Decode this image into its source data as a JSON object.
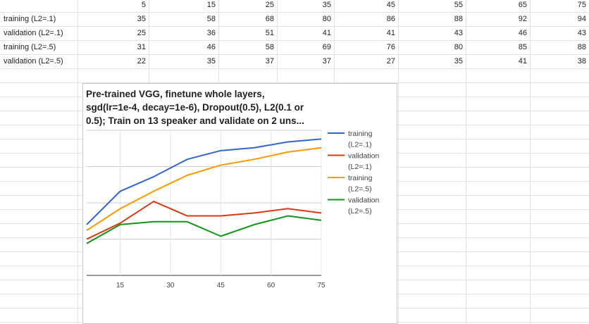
{
  "sheet": {
    "rows": [
      {
        "label": "",
        "values": [
          "5",
          "15",
          "25",
          "35",
          "45",
          "55",
          "65",
          "75"
        ]
      },
      {
        "label": "training (L2=.1)",
        "values": [
          "35",
          "58",
          "68",
          "80",
          "86",
          "88",
          "92",
          "94"
        ]
      },
      {
        "label": "validation (L2=.1)",
        "values": [
          "25",
          "36",
          "51",
          "41",
          "41",
          "43",
          "46",
          "43"
        ]
      },
      {
        "label": "training (L2=.5)",
        "values": [
          "31",
          "46",
          "58",
          "69",
          "76",
          "80",
          "85",
          "88"
        ]
      },
      {
        "label": "validation (L2=.5)",
        "values": [
          "22",
          "35",
          "37",
          "37",
          "27",
          "35",
          "41",
          "38"
        ]
      }
    ]
  },
  "chart": {
    "title_lines": [
      "Pre-trained VGG, finetune whole layers,",
      "sgd(lr=1e-4, decay=1e-6), Dropout(0.5), L2(0.1 or",
      "0.5); Train on 13 speaker and validate on 2 uns..."
    ]
  },
  "chart_data": {
    "type": "line",
    "title": "Pre-trained VGG, finetune whole layers, sgd(lr=1e-4, decay=1e-6), Dropout(0.5), L2(0.1 or 0.5); Train on 13 speaker and validate on 2 uns...",
    "x": [
      5,
      15,
      25,
      35,
      45,
      55,
      65,
      75
    ],
    "xticks": [
      15,
      30,
      45,
      60,
      75
    ],
    "yticks": [
      0,
      25,
      50,
      75,
      100
    ],
    "xlim": [
      5,
      75
    ],
    "ylim": [
      0,
      100
    ],
    "grid": true,
    "legend_position": "right",
    "series": [
      {
        "name": "training (L2=.1)",
        "label_lines": [
          "training",
          "(L2=.1)"
        ],
        "color": "#3366cc",
        "values": [
          35,
          58,
          68,
          80,
          86,
          88,
          92,
          94
        ]
      },
      {
        "name": "validation (L2=.1)",
        "label_lines": [
          "validation",
          "(L2=.1)"
        ],
        "color": "#dc3912",
        "values": [
          25,
          36,
          51,
          41,
          41,
          43,
          46,
          43
        ]
      },
      {
        "name": "training (L2=.5)",
        "label_lines": [
          "training",
          "(L2=.5)"
        ],
        "color": "#ff9900",
        "values": [
          31,
          46,
          58,
          69,
          76,
          80,
          85,
          88
        ]
      },
      {
        "name": "validation (L2=.5)",
        "label_lines": [
          "validation",
          "(L2=.5)"
        ],
        "color": "#109618",
        "values": [
          22,
          35,
          37,
          37,
          27,
          35,
          41,
          38
        ]
      }
    ]
  }
}
